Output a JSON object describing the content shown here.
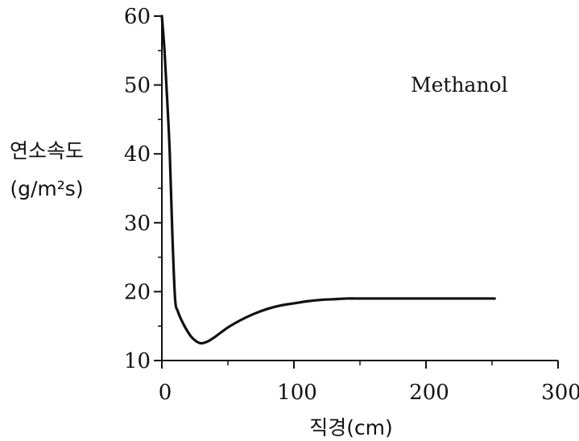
{
  "chart_data": {
    "type": "line",
    "title": "",
    "xlabel": "직경(cm)",
    "ylabel": [
      "연소속도",
      "(g/m²s)"
    ],
    "xlim": [
      0,
      300
    ],
    "ylim": [
      10,
      60
    ],
    "xticks": [
      0,
      100,
      200,
      300
    ],
    "yticks": [
      10,
      20,
      30,
      40,
      50,
      60
    ],
    "grid": false,
    "annotations": [
      "Methanol"
    ],
    "series": [
      {
        "x": [
          0,
          2,
          4,
          6,
          8,
          10,
          12,
          15,
          18,
          22,
          26,
          30,
          35,
          40,
          50,
          60,
          70,
          80,
          90,
          100,
          110,
          120,
          130,
          140,
          150,
          160,
          180,
          200,
          220,
          240,
          252
        ],
        "y": [
          60,
          55,
          48,
          40,
          28,
          19,
          17.2,
          15.8,
          14.7,
          13.5,
          12.8,
          12.5,
          12.8,
          13.4,
          14.8,
          15.9,
          16.8,
          17.5,
          18.0,
          18.3,
          18.6,
          18.8,
          18.9,
          19.0,
          19.0,
          19.0,
          19.0,
          19.0,
          19.0,
          19.0,
          19.0
        ]
      }
    ]
  }
}
